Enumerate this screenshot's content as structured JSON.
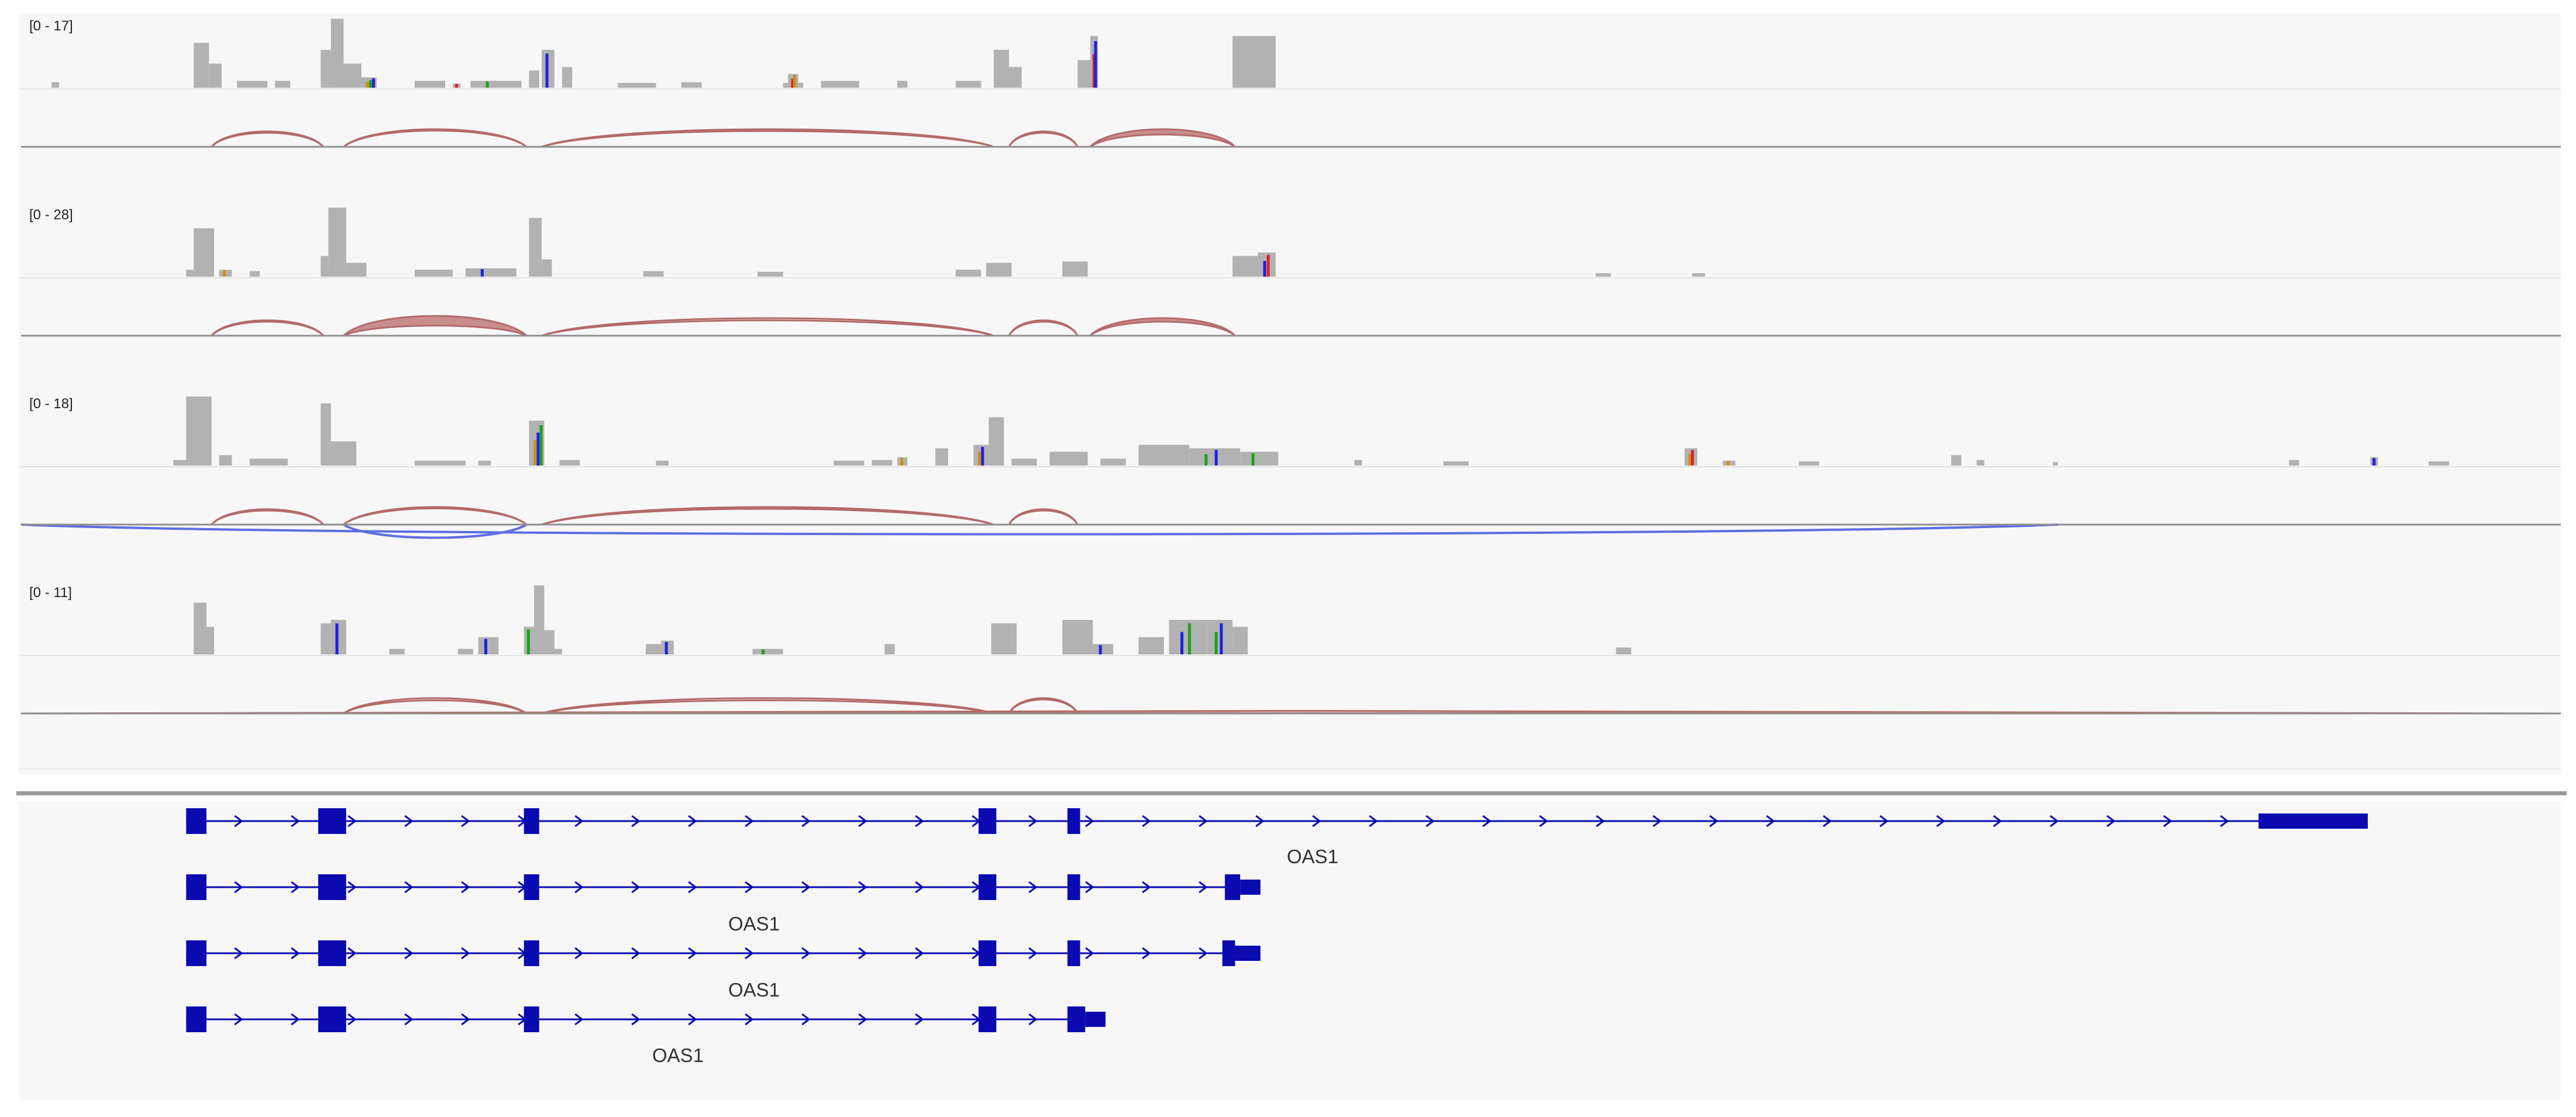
{
  "colors": {
    "panel_bg": "#f7f7f7",
    "coverage": "#b2b2b2",
    "junction_forward": "#b46a6a",
    "junction_reverse": "#5c6ee0",
    "gene": "#0a0ab0",
    "separator": "#8f8f8f",
    "mismatch_a": "#1fa01f",
    "mismatch_c": "#2020e0",
    "mismatch_g": "#d09010",
    "mismatch_t": "#e02020"
  },
  "tracks": [
    {
      "range_label": "[0 - 17]",
      "max": 17,
      "coverage": [
        {
          "x": 0.012,
          "w": 0.003,
          "v": 0.08
        },
        {
          "x": 0.068,
          "w": 0.006,
          "v": 0.65
        },
        {
          "x": 0.074,
          "w": 0.005,
          "v": 0.35
        },
        {
          "x": 0.085,
          "w": 0.012,
          "v": 0.1
        },
        {
          "x": 0.1,
          "w": 0.006,
          "v": 0.1
        },
        {
          "x": 0.118,
          "w": 0.004,
          "v": 0.55
        },
        {
          "x": 0.122,
          "w": 0.005,
          "v": 1.0
        },
        {
          "x": 0.127,
          "w": 0.007,
          "v": 0.35
        },
        {
          "x": 0.134,
          "w": 0.006,
          "v": 0.15,
          "mm": [
            "g",
            "a",
            "c"
          ]
        },
        {
          "x": 0.155,
          "w": 0.012,
          "v": 0.1
        },
        {
          "x": 0.17,
          "w": 0.003,
          "v": 0.06,
          "mm": [
            "t"
          ]
        },
        {
          "x": 0.177,
          "w": 0.02,
          "v": 0.1,
          "mm": [
            "a"
          ]
        },
        {
          "x": 0.2,
          "w": 0.004,
          "v": 0.25
        },
        {
          "x": 0.205,
          "w": 0.005,
          "v": 0.55,
          "mm": [
            "c"
          ]
        },
        {
          "x": 0.213,
          "w": 0.004,
          "v": 0.3
        },
        {
          "x": 0.235,
          "w": 0.015,
          "v": 0.07
        },
        {
          "x": 0.26,
          "w": 0.008,
          "v": 0.08
        },
        {
          "x": 0.3,
          "w": 0.008,
          "v": 0.07
        },
        {
          "x": 0.302,
          "w": 0.004,
          "v": 0.2,
          "mm": [
            "t",
            "g"
          ]
        },
        {
          "x": 0.315,
          "w": 0.015,
          "v": 0.1
        },
        {
          "x": 0.345,
          "w": 0.004,
          "v": 0.1
        },
        {
          "x": 0.368,
          "w": 0.01,
          "v": 0.1
        },
        {
          "x": 0.383,
          "w": 0.006,
          "v": 0.55
        },
        {
          "x": 0.389,
          "w": 0.005,
          "v": 0.3
        },
        {
          "x": 0.416,
          "w": 0.005,
          "v": 0.4
        },
        {
          "x": 0.421,
          "w": 0.003,
          "v": 0.75,
          "mm": [
            "t",
            "c"
          ]
        },
        {
          "x": 0.477,
          "w": 0.017,
          "v": 0.75
        }
      ],
      "junctions": [
        {
          "x1": 0.075,
          "x2": 0.119,
          "h": 0.35,
          "t": 0.03
        },
        {
          "x1": 0.127,
          "x2": 0.199,
          "h": 0.4,
          "t": 0.03
        },
        {
          "x1": 0.205,
          "x2": 0.383,
          "h": 0.4,
          "t": 0.04
        },
        {
          "x1": 0.389,
          "x2": 0.416,
          "h": 0.35,
          "t": 0.03
        },
        {
          "x1": 0.421,
          "x2": 0.478,
          "h": 0.4,
          "t": 0.12
        }
      ],
      "reverse_junctions": []
    },
    {
      "range_label": "[0 - 28]",
      "max": 28,
      "coverage": [
        {
          "x": 0.065,
          "w": 0.003,
          "v": 0.1
        },
        {
          "x": 0.068,
          "w": 0.008,
          "v": 0.7
        },
        {
          "x": 0.078,
          "w": 0.005,
          "v": 0.1,
          "mm": [
            "g"
          ]
        },
        {
          "x": 0.09,
          "w": 0.004,
          "v": 0.08
        },
        {
          "x": 0.118,
          "w": 0.003,
          "v": 0.3
        },
        {
          "x": 0.121,
          "w": 0.007,
          "v": 1.0
        },
        {
          "x": 0.128,
          "w": 0.008,
          "v": 0.2
        },
        {
          "x": 0.155,
          "w": 0.015,
          "v": 0.1
        },
        {
          "x": 0.175,
          "w": 0.02,
          "v": 0.12,
          "mm": [
            "c"
          ]
        },
        {
          "x": 0.2,
          "w": 0.005,
          "v": 0.85
        },
        {
          "x": 0.205,
          "w": 0.004,
          "v": 0.25
        },
        {
          "x": 0.245,
          "w": 0.008,
          "v": 0.08
        },
        {
          "x": 0.29,
          "w": 0.01,
          "v": 0.07
        },
        {
          "x": 0.368,
          "w": 0.01,
          "v": 0.1
        },
        {
          "x": 0.38,
          "w": 0.01,
          "v": 0.2
        },
        {
          "x": 0.41,
          "w": 0.01,
          "v": 0.22
        },
        {
          "x": 0.477,
          "w": 0.01,
          "v": 0.3
        },
        {
          "x": 0.487,
          "w": 0.007,
          "v": 0.35,
          "mm": [
            "c",
            "t"
          ]
        },
        {
          "x": 0.62,
          "w": 0.006,
          "v": 0.05
        },
        {
          "x": 0.658,
          "w": 0.005,
          "v": 0.05
        }
      ],
      "junctions": [
        {
          "x1": 0.075,
          "x2": 0.119,
          "h": 0.35,
          "t": 0.03
        },
        {
          "x1": 0.127,
          "x2": 0.199,
          "h": 0.45,
          "t": 0.22
        },
        {
          "x1": 0.205,
          "x2": 0.383,
          "h": 0.4,
          "t": 0.05
        },
        {
          "x1": 0.389,
          "x2": 0.416,
          "h": 0.35,
          "t": 0.03
        },
        {
          "x1": 0.421,
          "x2": 0.478,
          "h": 0.4,
          "t": 0.08
        }
      ],
      "reverse_junctions": []
    },
    {
      "range_label": "[0 - 18]",
      "max": 18,
      "coverage": [
        {
          "x": 0.06,
          "w": 0.005,
          "v": 0.08
        },
        {
          "x": 0.065,
          "w": 0.01,
          "v": 1.0
        },
        {
          "x": 0.078,
          "w": 0.005,
          "v": 0.15
        },
        {
          "x": 0.09,
          "w": 0.015,
          "v": 0.1
        },
        {
          "x": 0.118,
          "w": 0.004,
          "v": 0.9
        },
        {
          "x": 0.122,
          "w": 0.01,
          "v": 0.35
        },
        {
          "x": 0.155,
          "w": 0.02,
          "v": 0.07
        },
        {
          "x": 0.18,
          "w": 0.005,
          "v": 0.07
        },
        {
          "x": 0.2,
          "w": 0.006,
          "v": 0.65,
          "mm": [
            "g",
            "c",
            "a"
          ]
        },
        {
          "x": 0.212,
          "w": 0.008,
          "v": 0.08
        },
        {
          "x": 0.25,
          "w": 0.005,
          "v": 0.07
        },
        {
          "x": 0.32,
          "w": 0.012,
          "v": 0.07
        },
        {
          "x": 0.335,
          "w": 0.008,
          "v": 0.08
        },
        {
          "x": 0.345,
          "w": 0.004,
          "v": 0.12,
          "mm": [
            "g"
          ]
        },
        {
          "x": 0.36,
          "w": 0.005,
          "v": 0.25
        },
        {
          "x": 0.375,
          "w": 0.006,
          "v": 0.3,
          "mm": [
            "g",
            "c"
          ]
        },
        {
          "x": 0.381,
          "w": 0.006,
          "v": 0.7
        },
        {
          "x": 0.39,
          "w": 0.01,
          "v": 0.1
        },
        {
          "x": 0.405,
          "w": 0.015,
          "v": 0.2
        },
        {
          "x": 0.425,
          "w": 0.01,
          "v": 0.1
        },
        {
          "x": 0.44,
          "w": 0.02,
          "v": 0.3
        },
        {
          "x": 0.46,
          "w": 0.02,
          "v": 0.25,
          "mm": [
            "a",
            "c"
          ]
        },
        {
          "x": 0.48,
          "w": 0.015,
          "v": 0.2,
          "mm": [
            "a"
          ]
        },
        {
          "x": 0.525,
          "w": 0.003,
          "v": 0.08
        },
        {
          "x": 0.56,
          "w": 0.01,
          "v": 0.06
        },
        {
          "x": 0.655,
          "w": 0.005,
          "v": 0.25,
          "mm": [
            "g",
            "t"
          ]
        },
        {
          "x": 0.67,
          "w": 0.005,
          "v": 0.07,
          "mm": [
            "g"
          ]
        },
        {
          "x": 0.7,
          "w": 0.008,
          "v": 0.06
        },
        {
          "x": 0.76,
          "w": 0.004,
          "v": 0.15
        },
        {
          "x": 0.77,
          "w": 0.003,
          "v": 0.08
        },
        {
          "x": 0.8,
          "w": 0.002,
          "v": 0.05
        },
        {
          "x": 0.893,
          "w": 0.004,
          "v": 0.08
        },
        {
          "x": 0.925,
          "w": 0.003,
          "v": 0.12,
          "mm": [
            "c"
          ]
        },
        {
          "x": 0.948,
          "w": 0.008,
          "v": 0.06
        }
      ],
      "junctions": [
        {
          "x1": 0.075,
          "x2": 0.119,
          "h": 0.35,
          "t": 0.03
        },
        {
          "x1": 0.127,
          "x2": 0.199,
          "h": 0.4,
          "t": 0.03
        },
        {
          "x1": 0.205,
          "x2": 0.383,
          "h": 0.4,
          "t": 0.04
        },
        {
          "x1": 0.389,
          "x2": 0.416,
          "h": 0.35,
          "t": 0.03
        }
      ],
      "reverse_junctions": [
        {
          "x1": 0.127,
          "x2": 0.199,
          "h": 0.3,
          "t": 0.03
        },
        {
          "x1": 0.0,
          "x2": 0.802,
          "h": 0.22,
          "t": 0.04
        }
      ]
    },
    {
      "range_label": "[0 - 11]",
      "max": 11,
      "coverage": [
        {
          "x": 0.068,
          "w": 0.005,
          "v": 0.75
        },
        {
          "x": 0.073,
          "w": 0.003,
          "v": 0.4
        },
        {
          "x": 0.118,
          "w": 0.004,
          "v": 0.45
        },
        {
          "x": 0.122,
          "w": 0.006,
          "v": 0.5,
          "mm": [
            "c"
          ]
        },
        {
          "x": 0.145,
          "w": 0.006,
          "v": 0.08
        },
        {
          "x": 0.172,
          "w": 0.006,
          "v": 0.08
        },
        {
          "x": 0.18,
          "w": 0.008,
          "v": 0.25,
          "mm": [
            "c"
          ]
        },
        {
          "x": 0.198,
          "w": 0.004,
          "v": 0.4,
          "mm": [
            "a"
          ]
        },
        {
          "x": 0.202,
          "w": 0.004,
          "v": 1.0
        },
        {
          "x": 0.206,
          "w": 0.004,
          "v": 0.35
        },
        {
          "x": 0.208,
          "w": 0.005,
          "v": 0.08
        },
        {
          "x": 0.246,
          "w": 0.006,
          "v": 0.15
        },
        {
          "x": 0.252,
          "w": 0.005,
          "v": 0.2,
          "mm": [
            "c"
          ]
        },
        {
          "x": 0.288,
          "w": 0.012,
          "v": 0.08,
          "mm": [
            "a"
          ]
        },
        {
          "x": 0.34,
          "w": 0.004,
          "v": 0.15
        },
        {
          "x": 0.382,
          "w": 0.01,
          "v": 0.45
        },
        {
          "x": 0.41,
          "w": 0.012,
          "v": 0.5
        },
        {
          "x": 0.422,
          "w": 0.008,
          "v": 0.15,
          "mm": [
            "c"
          ]
        },
        {
          "x": 0.44,
          "w": 0.01,
          "v": 0.25
        },
        {
          "x": 0.452,
          "w": 0.015,
          "v": 0.5,
          "mm": [
            "c",
            "a"
          ]
        },
        {
          "x": 0.467,
          "w": 0.01,
          "v": 0.5,
          "mm": [
            "a",
            "c"
          ]
        },
        {
          "x": 0.477,
          "w": 0.006,
          "v": 0.4
        },
        {
          "x": 0.628,
          "w": 0.006,
          "v": 0.1
        }
      ],
      "junctions": [
        {
          "x1": 0.0,
          "x2": 0.999,
          "h": 0.06,
          "t": 0.05
        },
        {
          "x1": 0.127,
          "x2": 0.199,
          "h": 0.35,
          "t": 0.05
        },
        {
          "x1": 0.205,
          "x2": 0.383,
          "h": 0.35,
          "t": 0.05
        },
        {
          "x1": 0.389,
          "x2": 0.416,
          "h": 0.35,
          "t": 0.03
        }
      ],
      "reverse_junctions": []
    }
  ],
  "genes": [
    {
      "label": "",
      "exons": [
        {
          "x1": 0.065,
          "x2": 0.073,
          "tall": true
        },
        {
          "x1": 0.117,
          "x2": 0.128,
          "tall": true
        },
        {
          "x1": 0.198,
          "x2": 0.204,
          "tall": true
        },
        {
          "x1": 0.377,
          "x2": 0.384,
          "tall": true
        },
        {
          "x1": 0.412,
          "x2": 0.417,
          "tall": true
        },
        {
          "x1": 0.881,
          "x2": 0.924,
          "tall": false
        }
      ],
      "span": [
        0.065,
        0.924
      ]
    },
    {
      "label": "OAS1",
      "exons": [
        {
          "x1": 0.065,
          "x2": 0.073,
          "tall": true
        },
        {
          "x1": 0.117,
          "x2": 0.128,
          "tall": true
        },
        {
          "x1": 0.198,
          "x2": 0.204,
          "tall": true
        },
        {
          "x1": 0.377,
          "x2": 0.384,
          "tall": true
        },
        {
          "x1": 0.412,
          "x2": 0.417,
          "tall": true
        },
        {
          "x1": 0.474,
          "x2": 0.48,
          "tall": true
        },
        {
          "x1": 0.48,
          "x2": 0.488,
          "tall": false
        }
      ],
      "span": [
        0.065,
        0.488
      ]
    },
    {
      "label": "OAS1",
      "exons": [
        {
          "x1": 0.065,
          "x2": 0.073,
          "tall": true
        },
        {
          "x1": 0.117,
          "x2": 0.128,
          "tall": true
        },
        {
          "x1": 0.198,
          "x2": 0.204,
          "tall": true
        },
        {
          "x1": 0.377,
          "x2": 0.384,
          "tall": true
        },
        {
          "x1": 0.412,
          "x2": 0.417,
          "tall": true
        },
        {
          "x1": 0.473,
          "x2": 0.478,
          "tall": true
        },
        {
          "x1": 0.478,
          "x2": 0.488,
          "tall": false
        }
      ],
      "span": [
        0.065,
        0.488
      ]
    },
    {
      "label": "OAS1",
      "exons": [
        {
          "x1": 0.065,
          "x2": 0.073,
          "tall": true
        },
        {
          "x1": 0.117,
          "x2": 0.128,
          "tall": true
        },
        {
          "x1": 0.198,
          "x2": 0.204,
          "tall": true
        },
        {
          "x1": 0.377,
          "x2": 0.384,
          "tall": true
        },
        {
          "x1": 0.412,
          "x2": 0.419,
          "tall": true
        },
        {
          "x1": 0.419,
          "x2": 0.427,
          "tall": false
        }
      ],
      "span": [
        0.065,
        0.427
      ]
    },
    {
      "label": "OAS1",
      "exons": [],
      "span": [
        0.0,
        0.0
      ]
    }
  ]
}
